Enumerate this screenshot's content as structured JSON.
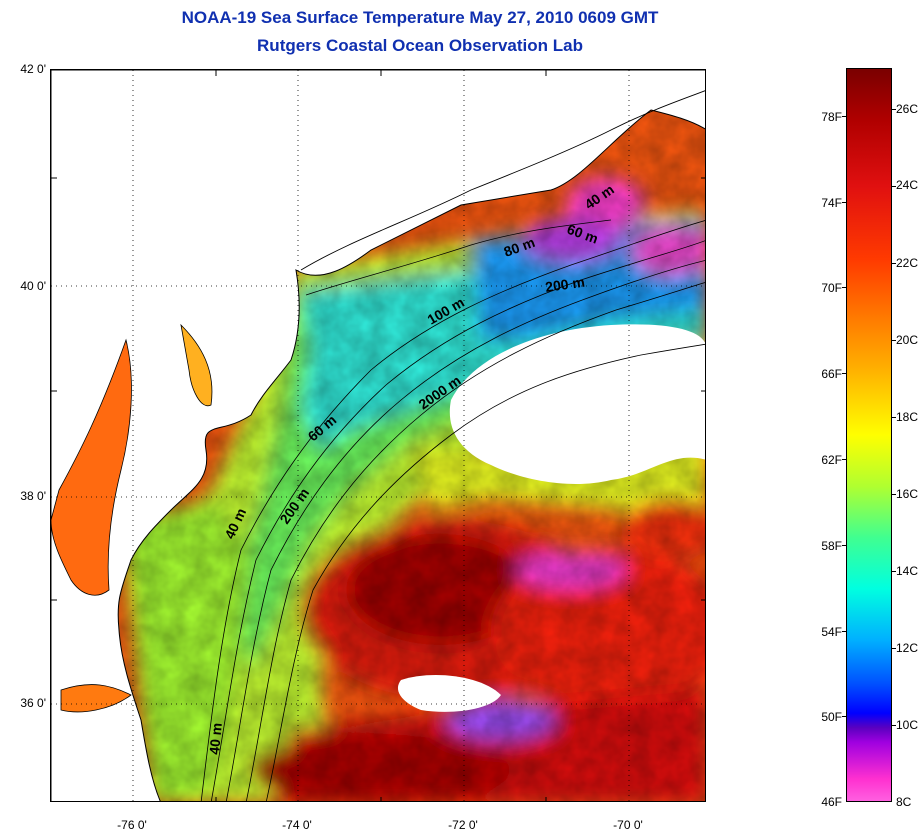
{
  "title_line1": "NOAA-19 Sea Surface Temperature May 27, 2010 0609 GMT",
  "title_line2": "Rutgers Coastal Ocean Observation Lab",
  "lat_labels": [
    "42 0'",
    "40 0'",
    "38 0'",
    "36 0'"
  ],
  "lon_labels": [
    "-76 0'",
    "-74 0'",
    "-72 0'",
    "-70 0'"
  ],
  "contours": [
    "40 m",
    "60 m",
    "80 m",
    "200 m",
    "100 m",
    "2000 m",
    "60 m",
    "200 m",
    "40 m",
    "40 m"
  ],
  "colorbar_f": [
    "78F",
    "74F",
    "70F",
    "66F",
    "62F",
    "58F",
    "54F",
    "50F",
    "46F"
  ],
  "colorbar_c": [
    "26C",
    "24C",
    "22C",
    "20C",
    "18C",
    "16C",
    "14C",
    "12C",
    "10C",
    "8C"
  ],
  "colors": {
    "title": "#1030b0",
    "land": "#ffffff",
    "gridline": "#000000"
  }
}
